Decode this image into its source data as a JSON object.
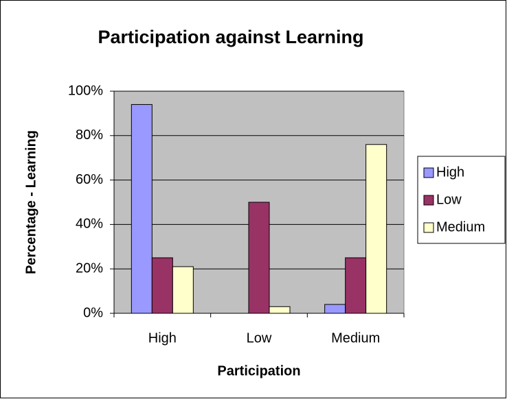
{
  "chart_data": {
    "type": "bar",
    "title": "Participation against Learning",
    "x_label": "Participation",
    "y_label": "Percentage - Learning",
    "categories": [
      "High",
      "Low",
      "Medium"
    ],
    "series": [
      {
        "name": "High",
        "color": "#9999ff",
        "values": [
          94,
          0,
          4
        ]
      },
      {
        "name": "Low",
        "color": "#993366",
        "values": [
          25,
          50,
          25
        ]
      },
      {
        "name": "Medium",
        "color": "#ffffcc",
        "values": [
          21,
          3,
          76
        ]
      }
    ],
    "ylim": [
      0,
      100
    ],
    "yticks": [
      {
        "value": 0,
        "label": "0%"
      },
      {
        "value": 20,
        "label": "20%"
      },
      {
        "value": 40,
        "label": "40%"
      },
      {
        "value": 60,
        "label": "60%"
      },
      {
        "value": 80,
        "label": "80%"
      },
      {
        "value": 100,
        "label": "100%"
      }
    ],
    "grid": true,
    "legend": "right",
    "plot_background": "#c0c0c0"
  }
}
